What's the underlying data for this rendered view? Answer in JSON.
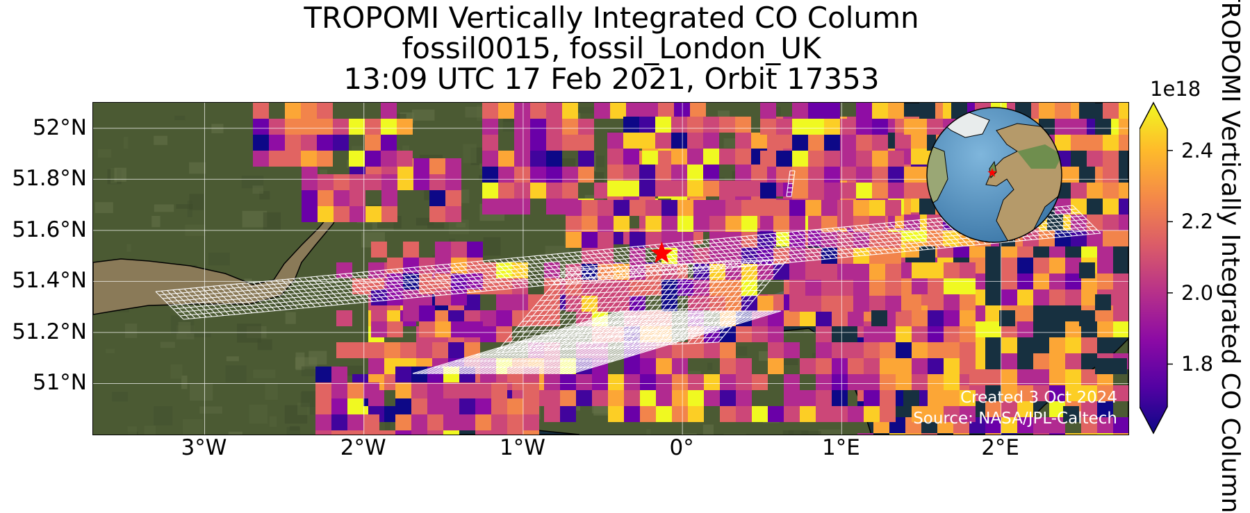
{
  "title": {
    "line1": "TROPOMI Vertically Integrated CO Column",
    "line2": "fossil0015, fossil_London_UK",
    "line3": "13:09 UTC 17 Feb 2021, Orbit 17353"
  },
  "map": {
    "lat_ticks": [
      {
        "value": 52.0,
        "label": "52°N"
      },
      {
        "value": 51.8,
        "label": "51.8°N"
      },
      {
        "value": 51.6,
        "label": "51.6°N"
      },
      {
        "value": 51.4,
        "label": "51.4°N"
      },
      {
        "value": 51.2,
        "label": "51.2°N"
      },
      {
        "value": 51.0,
        "label": "51°N"
      }
    ],
    "lon_ticks": [
      {
        "value": -3,
        "label": "3°W"
      },
      {
        "value": -2,
        "label": "2°W"
      },
      {
        "value": -1,
        "label": "1°W"
      },
      {
        "value": 0,
        "label": "0°"
      },
      {
        "value": 1,
        "label": "1°E"
      },
      {
        "value": 2,
        "label": "2°E"
      }
    ],
    "extent": {
      "lon_min": -3.7,
      "lon_max": 2.8,
      "lat_min": 50.8,
      "lat_max": 52.1
    },
    "site_marker": {
      "lon": -0.13,
      "lat": 51.51,
      "color": "#ff0000"
    },
    "credit_line1": "Created 3 Oct 2024",
    "credit_line2": "Source: NASA/JPL-Caltech",
    "grid": true
  },
  "colorbar": {
    "exponent_label": "1e18",
    "ticks": [
      {
        "value": 1.8,
        "label": "1.8"
      },
      {
        "value": 2.0,
        "label": "2.0"
      },
      {
        "value": 2.2,
        "label": "2.2"
      },
      {
        "value": 2.4,
        "label": "2.4"
      }
    ],
    "range": [
      1.68,
      2.46
    ],
    "colormap": "plasma",
    "label": "TROPOMI Vertically Integrated CO Column"
  },
  "colors": {
    "land": "#4b5a33",
    "sea": "#173040",
    "estuary": "#8a7a58",
    "footprint": "#ffffff"
  }
}
